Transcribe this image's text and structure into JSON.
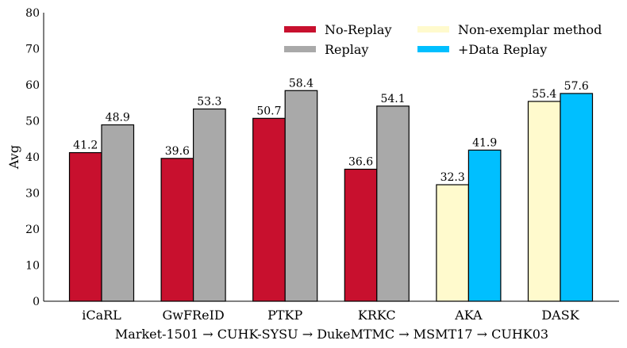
{
  "chart_data": {
    "type": "bar",
    "title": "",
    "xlabel": "Market-1501 → CUHK-SYSU → DukeMTMC → MSMT17 → CUHK03",
    "ylabel": "Avg",
    "ylim": [
      0,
      80
    ],
    "yticks": [
      0,
      10,
      20,
      30,
      40,
      50,
      60,
      70,
      80
    ],
    "grid": false,
    "legend_placement": "top-right",
    "categories": [
      "iCaRL",
      "GwFReID",
      "PTKP",
      "KRKC",
      "AKA",
      "DASK"
    ],
    "series": [
      {
        "name": "No-Replay",
        "color": "#c8102e",
        "position": "left",
        "values": [
          41.2,
          39.6,
          50.7,
          36.6,
          null,
          null
        ]
      },
      {
        "name": "Replay",
        "color": "#a9a9a9",
        "position": "right",
        "values": [
          48.9,
          53.3,
          58.4,
          54.1,
          null,
          null
        ]
      },
      {
        "name": "Non-exemplar method",
        "color": "#fffacd",
        "position": "left",
        "values": [
          null,
          null,
          null,
          null,
          32.3,
          55.4
        ]
      },
      {
        "name": "+Data Replay",
        "color": "#00bfff",
        "position": "right",
        "values": [
          null,
          null,
          null,
          null,
          41.9,
          57.6
        ]
      }
    ]
  }
}
